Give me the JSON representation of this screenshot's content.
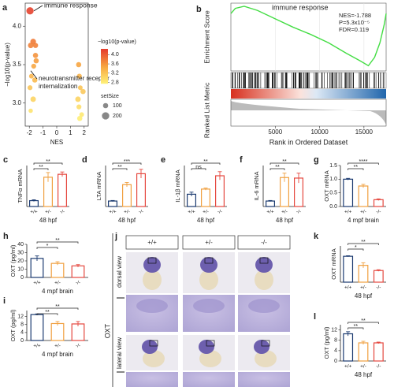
{
  "chart_data": [
    {
      "panel": "a",
      "type": "scatter",
      "xlabel": "NES",
      "ylabel": "−log10(p-value)",
      "x": [
        -1.95,
        -1.55,
        -1.72,
        -1.9,
        -1.5,
        -1.68,
        -1.85,
        -1.6,
        -1.95,
        -1.72,
        -1.9,
        -1.55,
        1.6,
        1.65,
        1.72,
        1.92,
        1.55,
        1.62,
        1.82,
        1.68
      ],
      "y": [
        4.2,
        3.75,
        3.8,
        3.75,
        3.55,
        3.48,
        3.35,
        3.3,
        3.2,
        3.05,
        2.9,
        3.62,
        3.5,
        3.35,
        3.2,
        3.15,
        3.05,
        2.95,
        2.85,
        2.8
      ],
      "sizes": [
        200,
        100,
        120,
        110,
        100,
        90,
        80,
        100,
        90,
        110,
        70,
        100,
        100,
        90,
        80,
        100,
        110,
        90,
        80,
        100
      ],
      "xlim": [
        -2.3,
        2.3
      ],
      "xticks": [
        -2,
        -1,
        0,
        1,
        2
      ],
      "ylim": [
        2.7,
        4.3
      ],
      "yticks": [
        {
          "value": 3,
          "label": "3.0"
        },
        {
          "value": 3.5,
          "label": "3.5"
        },
        {
          "value": 4,
          "label": "4.0"
        }
      ],
      "colormap": [
        "#fff37a",
        "#f7a541",
        "#e53b2c"
      ],
      "clim": [
        2.75,
        4.25
      ],
      "colorbar": {
        "title": "−log10(p-value)",
        "ticks": [
          {
            "value": 4,
            "label": "4.0"
          },
          {
            "value": 3.6,
            "label": "3.6"
          },
          {
            "value": 3.2,
            "label": "3.2"
          },
          {
            "value": 2.8,
            "label": "2.8"
          }
        ]
      },
      "size_legend": {
        "title": "setSize",
        "values": [
          100,
          200
        ]
      },
      "annotations": [
        {
          "lines": [
            "immune response"
          ]
        },
        {
          "lines": [
            "neurotransmitter receptor",
            "internalization"
          ]
        }
      ]
    },
    {
      "panel": "b",
      "type": "gsea",
      "title": "immune response",
      "stats": [
        "NES=-1.788",
        "P=5.3x10⁻⁵",
        "FDR=0.119"
      ],
      "ylabel": "Enrichment Score",
      "y2label": "Ranked List Metric",
      "xlabel": "Rank in Ordered Dataset",
      "x": [
        0,
        500,
        1500,
        3000,
        5000,
        7000,
        9000,
        11000,
        13000,
        14500,
        15500,
        16200,
        16800,
        17300,
        17500
      ],
      "values": [
        0,
        0.05,
        0.07,
        0.03,
        -0.05,
        -0.13,
        -0.2,
        -0.28,
        -0.38,
        -0.45,
        -0.5,
        -0.42,
        -0.28,
        -0.1,
        0
      ],
      "color": "#44dd44",
      "xlim": [
        0,
        17500
      ],
      "xticks": [
        5000,
        10000,
        15000
      ],
      "ylim": [
        -0.55,
        0.1
      ],
      "grid": true
    },
    {
      "panel": "c",
      "type": "bar",
      "ylabel": "TNFα mRNA",
      "xlabel": "48 hpf",
      "categories": [
        "+/+",
        "+/-",
        "-/-"
      ],
      "colors": [
        "#1b3a70",
        "#f0a040",
        "#e5483f"
      ],
      "values": [
        1,
        5,
        5.5
      ],
      "errors": [
        0.15,
        0.8,
        0.4
      ],
      "ylim": [
        0,
        7
      ],
      "significance": [
        "**",
        "**"
      ]
    },
    {
      "panel": "d",
      "type": "bar",
      "ylabel": "LTA mRNA",
      "xlabel": "48 hpf",
      "categories": [
        "+/+",
        "+/-",
        "-/-"
      ],
      "colors": [
        "#1b3a70",
        "#f0a040",
        "#e5483f"
      ],
      "values": [
        1,
        4,
        6
      ],
      "errors": [
        0.1,
        0.4,
        0.8
      ],
      "ylim": [
        0,
        7.5
      ],
      "significance": [
        "**",
        "***"
      ]
    },
    {
      "panel": "e",
      "type": "bar",
      "ylabel": "IL-1β mRNA",
      "xlabel": "48 hpf",
      "categories": [
        "+/+",
        "+/-",
        "-/-"
      ],
      "colors": [
        "#1b3a70",
        "#f0a040",
        "#e5483f"
      ],
      "values": [
        1.2,
        1.7,
        3
      ],
      "errors": [
        0.2,
        0.1,
        0.4
      ],
      "ylim": [
        0,
        4
      ],
      "significance": [
        "ns",
        "**"
      ]
    },
    {
      "panel": "f",
      "type": "bar",
      "ylabel": "IL-6 mRNA",
      "xlabel": "48 hpf",
      "categories": [
        "+/+",
        "+/-",
        "-/-"
      ],
      "colors": [
        "#1b3a70",
        "#f0a040",
        "#e5483f"
      ],
      "values": [
        1,
        5.3,
        5.2
      ],
      "errors": [
        0.1,
        0.8,
        0.9
      ],
      "ylim": [
        0,
        7.5
      ],
      "significance": [
        "**",
        "**"
      ]
    },
    {
      "panel": "g",
      "type": "bar",
      "ylabel": "OXT mRNA",
      "xlabel": "4 mpf brain",
      "categories": [
        "+/+",
        "+/-",
        "-/-"
      ],
      "colors": [
        "#1b3a70",
        "#f0a040",
        "#e5483f"
      ],
      "values": [
        1,
        0.75,
        0.25
      ],
      "errors": [
        0.03,
        0.06,
        0.03
      ],
      "ylim": [
        0,
        1.5
      ],
      "yticks": [
        {
          "value": 0,
          "label": "0.0"
        },
        {
          "value": 0.5,
          "label": "0.5"
        },
        {
          "value": 1,
          "label": "1.0"
        },
        {
          "value": 1.5,
          "label": "1.5"
        }
      ],
      "significance": [
        "**",
        "****"
      ]
    },
    {
      "panel": "h",
      "type": "bar",
      "ylabel": "OXT (pg/ml)",
      "xlabel": "4 mpf brain",
      "categories": [
        "+/+",
        "+/-",
        "-/-"
      ],
      "colors": [
        "#1b3a70",
        "#f0a040",
        "#e5483f"
      ],
      "values": [
        23,
        17,
        14
      ],
      "errors": [
        3,
        2,
        1.5
      ],
      "ylim": [
        0,
        40
      ],
      "yticks": [
        0,
        10,
        20,
        30,
        40
      ],
      "significance": [
        "*",
        "**"
      ]
    },
    {
      "panel": "i",
      "type": "bar",
      "ylabel": "OXT (pg/ml)",
      "xlabel": "4 mpf brain",
      "categories": [
        "+/+",
        "+/-",
        "-/-"
      ],
      "colors": [
        "#1b3a70",
        "#f0a040",
        "#e5483f"
      ],
      "values": [
        13,
        8.5,
        8.3
      ],
      "errors": [
        0.3,
        1,
        1.2
      ],
      "ylim": [
        0,
        15
      ],
      "yticks": [
        0,
        4,
        8,
        12
      ],
      "significance": [
        "**",
        "**"
      ]
    },
    {
      "panel": "k",
      "type": "bar",
      "ylabel": "OXT mRNA",
      "xlabel": "48 hpf",
      "categories": [
        "+/+",
        "+/-",
        "-/-"
      ],
      "colors": [
        "#1b3a70",
        "#f0a040",
        "#e5483f"
      ],
      "values": [
        1,
        0.65,
        0.45
      ],
      "errors": [
        0.02,
        0.1,
        0.03
      ],
      "ylim": [
        0,
        1.4
      ],
      "significance": [
        "*",
        "**"
      ]
    },
    {
      "panel": "l",
      "type": "bar",
      "ylabel": "OXT (pg/ml)",
      "xlabel": "48 hpf",
      "categories": [
        "+/+",
        "+/-",
        "-/-"
      ],
      "colors": [
        "#1b3a70",
        "#f0a040",
        "#e5483f"
      ],
      "values": [
        10.5,
        7,
        7
      ],
      "errors": [
        0.8,
        0.6,
        0.3
      ],
      "ylim": [
        0,
        14
      ],
      "yticks": [
        0,
        4,
        8,
        12
      ],
      "significance": [
        "**",
        "**"
      ]
    }
  ],
  "image_panel": {
    "panel": "j",
    "columns": [
      "+/+",
      "+/-",
      "-/-"
    ],
    "rows": [
      "dorsal view",
      "lateral view"
    ],
    "stain": "OXT"
  }
}
